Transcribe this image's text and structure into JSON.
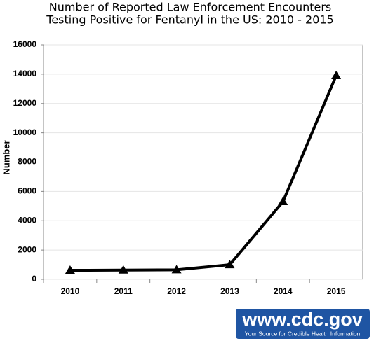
{
  "chart_data": {
    "type": "line",
    "title": [
      "Number of Reported Law Enforcement Encounters",
      "Testing Positive for Fentanyl in the US: 2010 - 2015"
    ],
    "y_label": "Number",
    "categories": [
      "2010",
      "2011",
      "2012",
      "2013",
      "2014",
      "2015"
    ],
    "values": [
      618,
      630,
      650,
      1000,
      5300,
      13900
    ],
    "color": "#000000",
    "ylim": [
      0,
      16000
    ],
    "yticks": [
      0,
      2000,
      4000,
      6000,
      8000,
      10000,
      12000,
      14000,
      16000
    ],
    "grid": true
  },
  "logo": {
    "url": "www.cdc.gov",
    "tagline": "Your Source for Credible Health Information"
  }
}
